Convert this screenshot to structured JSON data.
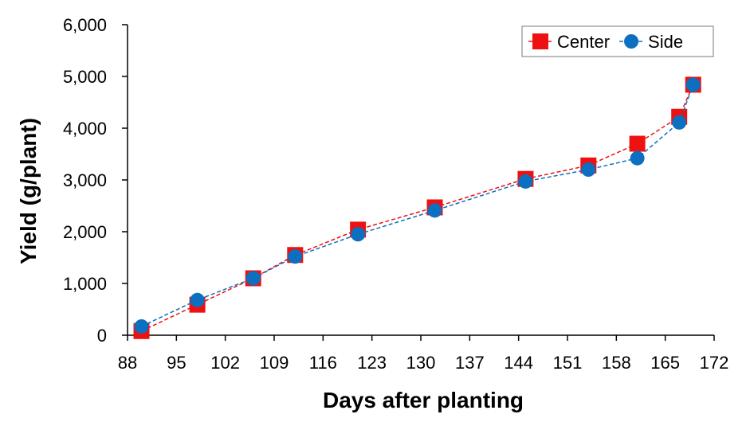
{
  "chart_data": {
    "type": "line",
    "title": "",
    "xlabel": "Days after planting",
    "ylabel": "Yield (g/plant)",
    "xlim": [
      88,
      172
    ],
    "ylim": [
      0,
      6000
    ],
    "x_ticks": [
      88,
      95,
      102,
      109,
      116,
      123,
      130,
      137,
      144,
      151,
      158,
      165,
      172
    ],
    "y_ticks": [
      0,
      1000,
      2000,
      3000,
      4000,
      5000,
      6000
    ],
    "y_tick_labels": [
      "0",
      "1,000",
      "2,000",
      "3,000",
      "4,000",
      "5,000",
      "6,000"
    ],
    "grid": false,
    "legend_position": "top-right",
    "series": [
      {
        "name": "Center",
        "color": "#ee1111",
        "marker": "square",
        "line_style": "dashed",
        "points": [
          {
            "x": 90,
            "y": 80
          },
          {
            "x": 98,
            "y": 590
          },
          {
            "x": 106,
            "y": 1100
          },
          {
            "x": 112,
            "y": 1550
          },
          {
            "x": 121,
            "y": 2040
          },
          {
            "x": 132,
            "y": 2470
          },
          {
            "x": 145,
            "y": 3020
          },
          {
            "x": 154,
            "y": 3280
          },
          {
            "x": 161,
            "y": 3700
          },
          {
            "x": 167,
            "y": 4220
          },
          {
            "x": 169,
            "y": 4840
          }
        ]
      },
      {
        "name": "Side",
        "color": "#0d6fc0",
        "marker": "circle",
        "line_style": "dashed",
        "points": [
          {
            "x": 90,
            "y": 170
          },
          {
            "x": 98,
            "y": 680
          },
          {
            "x": 106,
            "y": 1100
          },
          {
            "x": 112,
            "y": 1520
          },
          {
            "x": 121,
            "y": 1950
          },
          {
            "x": 132,
            "y": 2410
          },
          {
            "x": 145,
            "y": 2970
          },
          {
            "x": 154,
            "y": 3200
          },
          {
            "x": 161,
            "y": 3420
          },
          {
            "x": 167,
            "y": 4110
          },
          {
            "x": 169,
            "y": 4840
          }
        ]
      }
    ]
  }
}
